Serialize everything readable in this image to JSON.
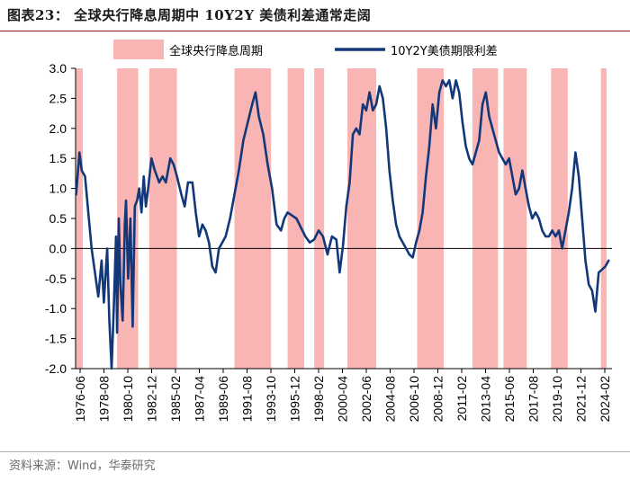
{
  "header": {
    "title": "图表23：  全球央行降息周期中 10Y2Y 美债利差通常走阔"
  },
  "footer": {
    "source": "资料来源：Wind，华泰研究"
  },
  "chart_data": {
    "type": "line",
    "title": "全球央行降息周期中 10Y2Y 美债利差通常走阔",
    "ylim": [
      -2.0,
      3.0
    ],
    "yticks": [
      "3.0",
      "2.5",
      "2.0",
      "1.5",
      "1.0",
      "0.5",
      "0.0",
      "-0.5",
      "-1.0",
      "-1.5",
      "-2.0"
    ],
    "xticks": [
      "1976-06",
      "1978-08",
      "1980-10",
      "1982-12",
      "1985-02",
      "1987-04",
      "1989-06",
      "1991-08",
      "1993-10",
      "1995-12",
      "1998-02",
      "2000-04",
      "2002-06",
      "2004-08",
      "2006-10",
      "2008-12",
      "2011-02",
      "2013-04",
      "2015-06",
      "2017-08",
      "2019-10",
      "2021-12",
      "2024-02"
    ],
    "xlim": [
      1976.45,
      2024.9
    ],
    "legend": [
      "全球央行降息周期",
      "10Y2Y美债期限利差"
    ],
    "legend_position": "top",
    "colors": {
      "band": "#f9b4b4",
      "line": "#12387a",
      "title_rule": "#8a1c1c"
    },
    "cut_cycles": [
      [
        1976.5,
        1977.1
      ],
      [
        1980.2,
        1982.1
      ],
      [
        1983.1,
        1985.6
      ],
      [
        1990.8,
        1994.1
      ],
      [
        1995.6,
        1997.1
      ],
      [
        1998.0,
        1998.9
      ],
      [
        2001.0,
        2003.6
      ],
      [
        2007.3,
        2009.7
      ],
      [
        2012.3,
        2014.6
      ],
      [
        2015.1,
        2017.2
      ],
      [
        2019.4,
        2020.9
      ],
      [
        2023.9,
        2024.4
      ]
    ],
    "series": [
      {
        "name": "10Y2Y美债期限利差",
        "x": [
          1976.5,
          1976.8,
          1977.0,
          1977.3,
          1977.6,
          1977.9,
          1978.2,
          1978.5,
          1978.8,
          1979.0,
          1979.3,
          1979.5,
          1979.7,
          1979.9,
          1980.1,
          1980.2,
          1980.35,
          1980.5,
          1980.7,
          1980.9,
          1981.0,
          1981.2,
          1981.4,
          1981.6,
          1981.8,
          1982.0,
          1982.2,
          1982.4,
          1982.6,
          1982.8,
          1983.0,
          1983.3,
          1983.6,
          1984.0,
          1984.3,
          1984.6,
          1985.0,
          1985.3,
          1985.6,
          1986.0,
          1986.3,
          1986.6,
          1987.0,
          1987.3,
          1987.6,
          1987.9,
          1988.2,
          1988.5,
          1988.8,
          1989.1,
          1989.4,
          1989.7,
          1990.0,
          1990.4,
          1990.8,
          1991.2,
          1991.6,
          1992.0,
          1992.4,
          1992.7,
          1993.0,
          1993.4,
          1993.8,
          1994.2,
          1994.6,
          1995.0,
          1995.3,
          1995.6,
          1996.0,
          1996.4,
          1996.8,
          1997.2,
          1997.6,
          1998.0,
          1998.4,
          1998.8,
          1999.2,
          1999.6,
          2000.0,
          2000.3,
          2000.6,
          2000.9,
          2001.2,
          2001.5,
          2001.8,
          2002.1,
          2002.4,
          2002.7,
          2003.0,
          2003.3,
          2003.6,
          2003.9,
          2004.2,
          2004.5,
          2004.8,
          2005.1,
          2005.4,
          2005.7,
          2006.0,
          2006.3,
          2006.6,
          2006.9,
          2007.2,
          2007.5,
          2007.8,
          2008.1,
          2008.4,
          2008.7,
          2009.0,
          2009.3,
          2009.6,
          2009.9,
          2010.2,
          2010.5,
          2010.8,
          2011.1,
          2011.4,
          2011.7,
          2012.0,
          2012.3,
          2012.6,
          2012.9,
          2013.2,
          2013.5,
          2013.8,
          2014.1,
          2014.4,
          2014.7,
          2015.0,
          2015.3,
          2015.6,
          2015.9,
          2016.2,
          2016.5,
          2016.8,
          2017.1,
          2017.4,
          2017.7,
          2018.0,
          2018.3,
          2018.6,
          2018.9,
          2019.2,
          2019.5,
          2019.8,
          2020.1,
          2020.4,
          2020.7,
          2021.0,
          2021.3,
          2021.6,
          2021.9,
          2022.2,
          2022.5,
          2022.8,
          2023.1,
          2023.4,
          2023.7,
          2024.0,
          2024.3,
          2024.6
        ],
        "values": [
          0.9,
          1.6,
          1.3,
          1.2,
          0.6,
          0.0,
          -0.4,
          -0.8,
          -0.2,
          -0.9,
          0.0,
          -1.2,
          -2.0,
          -1.0,
          0.2,
          -1.4,
          0.5,
          -0.6,
          -1.2,
          0.4,
          0.8,
          -0.5,
          0.5,
          -1.3,
          0.7,
          0.8,
          1.0,
          0.6,
          1.2,
          0.7,
          1.0,
          1.5,
          1.3,
          1.1,
          1.2,
          1.1,
          1.5,
          1.4,
          1.2,
          0.9,
          0.7,
          1.1,
          1.1,
          0.6,
          0.2,
          0.4,
          0.3,
          0.1,
          -0.3,
          -0.4,
          0.0,
          0.1,
          0.2,
          0.5,
          0.9,
          1.3,
          1.8,
          2.1,
          2.4,
          2.6,
          2.2,
          1.9,
          1.4,
          1.0,
          0.4,
          0.3,
          0.5,
          0.6,
          0.55,
          0.5,
          0.35,
          0.2,
          0.1,
          0.15,
          0.3,
          0.2,
          -0.1,
          0.2,
          0.15,
          -0.4,
          0.05,
          0.7,
          1.1,
          1.9,
          2.0,
          1.9,
          2.4,
          2.3,
          2.6,
          2.3,
          2.4,
          2.7,
          2.5,
          2.0,
          1.3,
          0.8,
          0.4,
          0.2,
          0.1,
          0.0,
          -0.1,
          -0.15,
          0.1,
          0.3,
          0.6,
          1.2,
          1.7,
          2.4,
          2.0,
          2.6,
          2.8,
          2.7,
          2.8,
          2.5,
          2.8,
          2.6,
          2.1,
          1.7,
          1.5,
          1.4,
          1.6,
          1.8,
          2.4,
          2.6,
          2.2,
          2.0,
          1.8,
          1.6,
          1.5,
          1.4,
          1.5,
          1.2,
          0.9,
          1.0,
          1.3,
          1.0,
          0.7,
          0.5,
          0.6,
          0.5,
          0.3,
          0.2,
          0.2,
          0.3,
          0.2,
          0.3,
          0.0,
          0.3,
          0.6,
          1.0,
          1.6,
          1.2,
          0.5,
          -0.2,
          -0.6,
          -0.7,
          -1.05,
          -0.4,
          -0.35,
          -0.3,
          -0.2
        ]
      }
    ]
  }
}
